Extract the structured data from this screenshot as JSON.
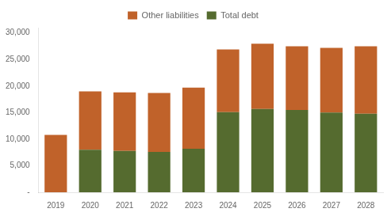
{
  "chart_data": {
    "type": "bar",
    "stacked": true,
    "categories": [
      "2019",
      "2020",
      "2021",
      "2022",
      "2023",
      "2024",
      "2025",
      "2026",
      "2027",
      "2028"
    ],
    "series": [
      {
        "name": "Total debt",
        "color": "#556B2F",
        "values": [
          0,
          8000,
          7800,
          7600,
          8200,
          15100,
          15700,
          15500,
          15000,
          14800
        ]
      },
      {
        "name": "Other liabilities",
        "color": "#C0622A",
        "values": [
          10800,
          11000,
          11000,
          11100,
          11500,
          11800,
          12300,
          12000,
          12200,
          12700
        ]
      }
    ],
    "ylim": [
      0,
      31000
    ],
    "yticks": [
      {
        "value": 0,
        "label": "-"
      },
      {
        "value": 5000,
        "label": "5,000"
      },
      {
        "value": 10000,
        "label": "10,000"
      },
      {
        "value": 15000,
        "label": "15,000"
      },
      {
        "value": 20000,
        "label": "20,000"
      },
      {
        "value": 25000,
        "label": "25,000"
      },
      {
        "value": 30000,
        "label": "30,000"
      }
    ],
    "grid": false,
    "legend": "top"
  }
}
